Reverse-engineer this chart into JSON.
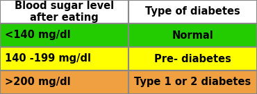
{
  "header_left": "Blood sugar level\nafter eating",
  "header_right": "Type of diabetes",
  "rows": [
    {
      "left": "<140 mg/dl",
      "right": "Normal",
      "bg_color": "#22cc00"
    },
    {
      "left": "140 -199 mg/dl",
      "right": "Pre- diabetes",
      "bg_color": "#ffff00"
    },
    {
      "left": ">200 mg/dl",
      "right": "Type 1 or 2 diabetes",
      "bg_color": "#f0a040"
    }
  ],
  "header_bg": "#ffffff",
  "header_fontsize": 10.5,
  "row_fontsize": 10.5,
  "text_color": "#000000",
  "border_color": "#888888",
  "col_split": 0.5,
  "fig_width": 3.7,
  "fig_height": 1.36,
  "dpi": 100
}
